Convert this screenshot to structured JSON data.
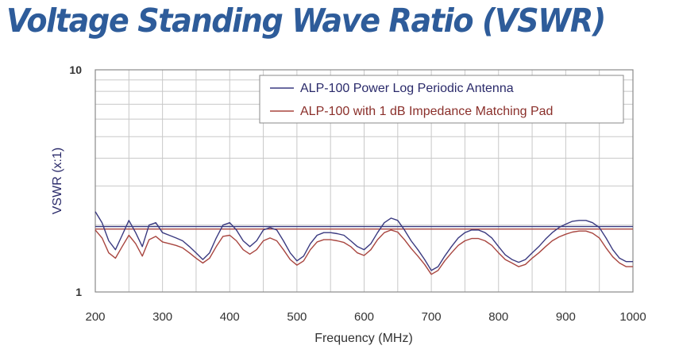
{
  "page_title": "Voltage Standing Wave Ratio (VSWR)",
  "chart_data": {
    "type": "line",
    "title": "Voltage Standing Wave Ratio (VSWR)",
    "xlabel": "Frequency (MHz)",
    "ylabel": "VSWR (x:1)",
    "xlim": [
      200,
      1000
    ],
    "ylim": [
      1,
      10
    ],
    "yscale": "log",
    "x_ticks": [
      "200",
      "300",
      "400",
      "500",
      "600",
      "700",
      "800",
      "900",
      "1000"
    ],
    "y_ticks": [
      "10",
      "1"
    ],
    "grid": true,
    "legend_position": "top-right",
    "series": [
      {
        "name": "ALP-100 Power Log Periodic Antenna",
        "color": "#3a3a80",
        "x": [
          200,
          210,
          220,
          230,
          240,
          250,
          260,
          270,
          280,
          290,
          300,
          310,
          320,
          330,
          340,
          350,
          360,
          370,
          380,
          390,
          400,
          410,
          420,
          430,
          440,
          450,
          460,
          470,
          480,
          490,
          500,
          510,
          520,
          530,
          540,
          550,
          560,
          570,
          580,
          590,
          600,
          610,
          620,
          630,
          640,
          650,
          660,
          670,
          680,
          690,
          700,
          710,
          720,
          730,
          740,
          750,
          760,
          770,
          780,
          790,
          800,
          810,
          820,
          830,
          840,
          850,
          860,
          870,
          880,
          890,
          900,
          910,
          920,
          930,
          940,
          950,
          960,
          970,
          980,
          990,
          1000
        ],
        "values": [
          2.3,
          2.05,
          1.7,
          1.55,
          1.8,
          2.1,
          1.85,
          1.6,
          2.0,
          2.05,
          1.85,
          1.8,
          1.75,
          1.7,
          1.6,
          1.5,
          1.4,
          1.5,
          1.75,
          2.0,
          2.05,
          1.9,
          1.7,
          1.6,
          1.7,
          1.9,
          1.95,
          1.9,
          1.7,
          1.5,
          1.38,
          1.45,
          1.65,
          1.8,
          1.85,
          1.85,
          1.83,
          1.8,
          1.7,
          1.6,
          1.55,
          1.65,
          1.85,
          2.05,
          2.15,
          2.1,
          1.9,
          1.7,
          1.55,
          1.4,
          1.25,
          1.3,
          1.45,
          1.6,
          1.75,
          1.85,
          1.9,
          1.9,
          1.85,
          1.75,
          1.6,
          1.47,
          1.4,
          1.36,
          1.4,
          1.5,
          1.6,
          1.73,
          1.85,
          1.95,
          2.02,
          2.08,
          2.1,
          2.1,
          2.05,
          1.95,
          1.75,
          1.55,
          1.42,
          1.37,
          1.37
        ]
      },
      {
        "name": "ALP-100 with 1 dB Impedance Matching Pad",
        "color": "#a8453f",
        "x": [
          200,
          210,
          220,
          230,
          240,
          250,
          260,
          270,
          280,
          290,
          300,
          310,
          320,
          330,
          340,
          350,
          360,
          370,
          380,
          390,
          400,
          410,
          420,
          430,
          440,
          450,
          460,
          470,
          480,
          490,
          500,
          510,
          520,
          530,
          540,
          550,
          560,
          570,
          580,
          590,
          600,
          610,
          620,
          630,
          640,
          650,
          660,
          670,
          680,
          690,
          700,
          710,
          720,
          730,
          740,
          750,
          760,
          770,
          780,
          790,
          800,
          810,
          820,
          830,
          840,
          850,
          860,
          870,
          880,
          890,
          900,
          910,
          920,
          930,
          940,
          950,
          960,
          970,
          980,
          990,
          1000
        ],
        "values": [
          1.9,
          1.75,
          1.5,
          1.42,
          1.6,
          1.8,
          1.65,
          1.45,
          1.72,
          1.78,
          1.68,
          1.65,
          1.62,
          1.58,
          1.5,
          1.42,
          1.35,
          1.42,
          1.6,
          1.78,
          1.8,
          1.7,
          1.55,
          1.48,
          1.55,
          1.7,
          1.75,
          1.7,
          1.55,
          1.4,
          1.32,
          1.38,
          1.55,
          1.68,
          1.72,
          1.72,
          1.7,
          1.67,
          1.6,
          1.5,
          1.46,
          1.55,
          1.72,
          1.85,
          1.9,
          1.86,
          1.72,
          1.57,
          1.45,
          1.33,
          1.2,
          1.25,
          1.38,
          1.5,
          1.62,
          1.7,
          1.74,
          1.74,
          1.7,
          1.62,
          1.5,
          1.4,
          1.35,
          1.3,
          1.33,
          1.42,
          1.5,
          1.6,
          1.7,
          1.77,
          1.82,
          1.86,
          1.88,
          1.88,
          1.84,
          1.75,
          1.58,
          1.44,
          1.35,
          1.3,
          1.3
        ]
      }
    ],
    "reference_lines": [
      {
        "value": 1.92,
        "color": "#a8453f"
      },
      {
        "value": 1.97,
        "color": "#3a3a80"
      }
    ]
  }
}
